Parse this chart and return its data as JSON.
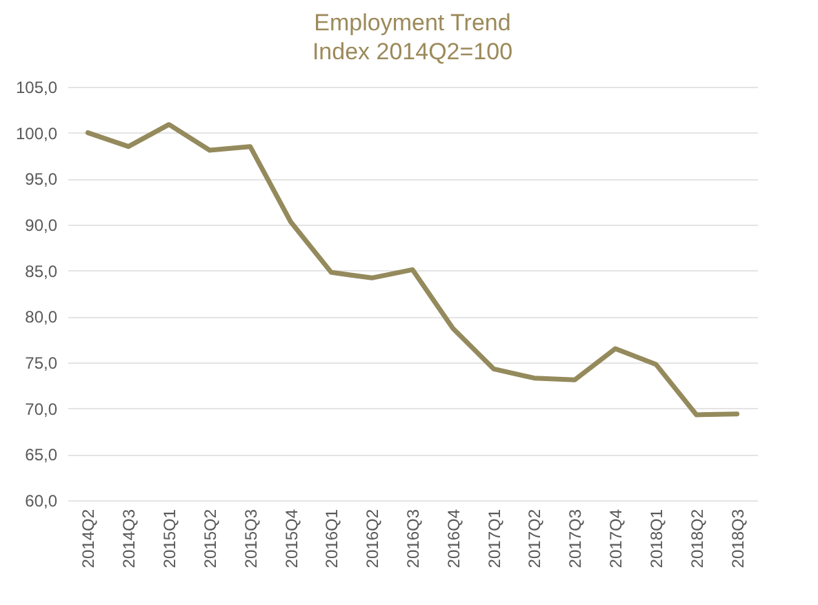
{
  "chart_data": {
    "type": "line",
    "title": "Employment Trend",
    "subtitle": "Index 2014Q2=100",
    "categories": [
      "2014Q2",
      "2014Q3",
      "2015Q1",
      "2015Q2",
      "2015Q3",
      "2015Q4",
      "2016Q1",
      "2016Q2",
      "2016Q3",
      "2016Q4",
      "2017Q1",
      "2017Q2",
      "2017Q3",
      "2017Q4",
      "2018Q1",
      "2018Q2",
      "2018Q3"
    ],
    "series": [
      {
        "color": "#948a5c",
        "values": [
          100,
          98.5,
          100.9,
          98.1,
          98.5,
          90.3,
          84.8,
          84.2,
          85.1,
          78.7,
          74.3,
          73.3,
          73.1,
          76.5,
          74.8,
          69.3,
          69.4
        ]
      }
    ],
    "ylim": [
      60,
      105
    ],
    "yticks": [
      {
        "value": 60,
        "label": "60,0"
      },
      {
        "value": 65,
        "label": "65,0"
      },
      {
        "value": 70,
        "label": "70,0"
      },
      {
        "value": 75,
        "label": "75,0"
      },
      {
        "value": 80,
        "label": "80,0"
      },
      {
        "value": 85,
        "label": "85,0"
      },
      {
        "value": 90,
        "label": "90,0"
      },
      {
        "value": 95,
        "label": "95,0"
      },
      {
        "value": 100,
        "label": "100,0"
      },
      {
        "value": 105,
        "label": "105,0"
      }
    ],
    "grid": "y",
    "marker": "none",
    "line_style": "solid"
  }
}
